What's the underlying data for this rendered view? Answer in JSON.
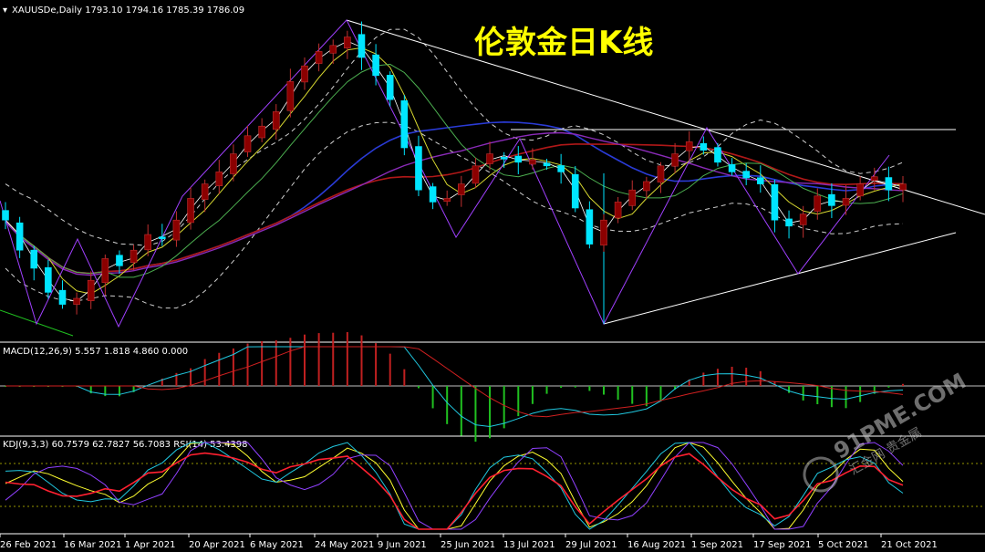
{
  "header": {
    "symbol_line": "XAUUSDe,Daily  1793.10 1794.16 1785.39 1786.09",
    "title": "伦敦金日K线"
  },
  "macd_panel": {
    "label": "MACD(12,26,9) 5.557 1.818 4.860 0.000"
  },
  "kdj_panel": {
    "label": "KDJ(9,3,3) 60.7579 62.7827 56.7083  RSI(14) 53.4398"
  },
  "watermark": {
    "site": "91PME.COM",
    "cn": "汇金网 贵金属"
  },
  "x_axis": {
    "labels": [
      "26 Feb 2021",
      "16 Mar 2021",
      "1 Apr 2021",
      "20 Apr 2021",
      "6 May 2021",
      "24 May 2021",
      "9 Jun 2021",
      "25 Jun 2021",
      "13 Jul 2021",
      "29 Jul 2021",
      "16 Aug 2021",
      "1 Sep 2021",
      "17 Sep 2021",
      "5 Oct 2021",
      "21 Oct 2021"
    ]
  },
  "colors": {
    "bull": "#8b0000",
    "bear": "#00e5ff",
    "title": "#ffff00",
    "ma_blue": "#2a3bd6",
    "ma_red": "#b01818",
    "ma_purple": "#8a2bb8",
    "ma_yellow": "#d8d830",
    "ma_green": "#4caf50",
    "boll": "#cfcfcf",
    "zigzag": "#a040ff"
  },
  "chart_data": {
    "type": "candlestick",
    "last_ohlc": {
      "open": 1793.1,
      "high": 1794.16,
      "low": 1785.39,
      "close": 1786.09
    },
    "x_labels": [
      "26 Feb 2021",
      "16 Mar 2021",
      "1 Apr 2021",
      "20 Apr 2021",
      "6 May 2021",
      "24 May 2021",
      "9 Jun 2021",
      "25 Jun 2021",
      "13 Jul 2021",
      "29 Jul 2021",
      "16 Aug 2021",
      "1 Sep 2021",
      "17 Sep 2021",
      "5 Oct 2021",
      "21 Oct 2021"
    ],
    "close_path": [
      1760,
      1735,
      1720,
      1700,
      1690,
      1695,
      1710,
      1728,
      1722,
      1735,
      1748,
      1745,
      1760,
      1778,
      1790,
      1800,
      1815,
      1830,
      1838,
      1850,
      1875,
      1888,
      1900,
      1905,
      1912,
      1895,
      1880,
      1860,
      1820,
      1785,
      1775,
      1778,
      1790,
      1805,
      1815,
      1812,
      1808,
      1810,
      1805,
      1800,
      1770,
      1740,
      1760,
      1775,
      1785,
      1792,
      1805,
      1815,
      1825,
      1818,
      1808,
      1800,
      1795,
      1790,
      1760,
      1755,
      1765,
      1780,
      1772,
      1778,
      1790,
      1796,
      1785,
      1790
    ],
    "macd": {
      "name": "MACD(12,26,9)",
      "values": [
        5.557,
        1.818,
        4.86,
        0.0
      ]
    },
    "kdj": {
      "name": "KDJ(9,3,3)",
      "values": [
        60.7579,
        62.7827,
        56.7083
      ]
    },
    "rsi": {
      "name": "RSI(14)",
      "value": 53.4398
    }
  }
}
